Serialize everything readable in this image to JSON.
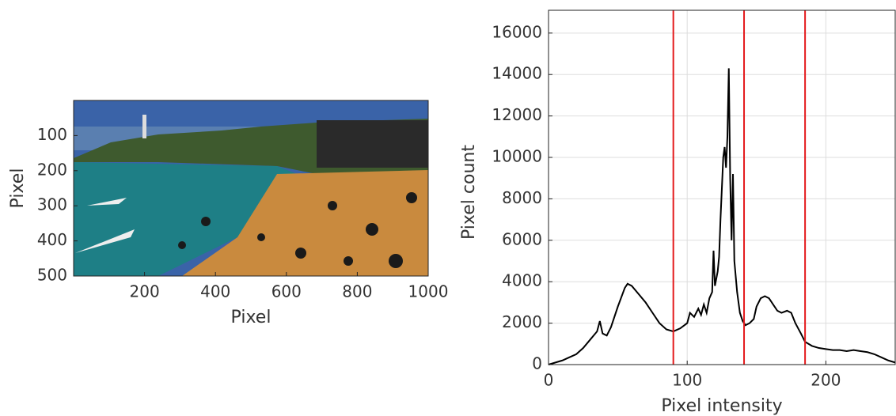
{
  "chart_data": [
    {
      "type": "image",
      "xlabel": "Pixel",
      "ylabel": "Pixel",
      "xlim": [
        0,
        1000
      ],
      "ylim": [
        0,
        500
      ],
      "y_inverted": true,
      "xticks": [
        200,
        400,
        600,
        800,
        1000
      ],
      "yticks": [
        100,
        200,
        300,
        400,
        500
      ]
    },
    {
      "type": "line",
      "xlabel": "Pixel intensity",
      "ylabel": "Pixel count",
      "xlim": [
        0,
        250
      ],
      "ylim": [
        0,
        17100
      ],
      "xticks": [
        0,
        100,
        200
      ],
      "yticks": [
        0,
        2000,
        4000,
        6000,
        8000,
        10000,
        12000,
        14000,
        16000
      ],
      "grid": true,
      "color": "#000000",
      "x": [
        0,
        5,
        10,
        15,
        20,
        25,
        30,
        35,
        37,
        39,
        42,
        45,
        50,
        55,
        57,
        60,
        65,
        70,
        75,
        80,
        85,
        90,
        95,
        100,
        102,
        105,
        108,
        110,
        112,
        114,
        116,
        118,
        119,
        120,
        122,
        123,
        124,
        126,
        127,
        128,
        129,
        130,
        131,
        132,
        133,
        134,
        136,
        138,
        140,
        142,
        145,
        148,
        150,
        153,
        156,
        159,
        162,
        165,
        168,
        172,
        175,
        178,
        182,
        185,
        190,
        195,
        200,
        205,
        210,
        215,
        220,
        225,
        230,
        235,
        240,
        245,
        250
      ],
      "values": [
        0,
        100,
        200,
        350,
        500,
        800,
        1200,
        1600,
        2100,
        1500,
        1400,
        1800,
        2800,
        3700,
        3900,
        3800,
        3400,
        3000,
        2500,
        2000,
        1700,
        1600,
        1750,
        2000,
        2500,
        2300,
        2700,
        2400,
        2900,
        2500,
        3200,
        3500,
        5500,
        3800,
        4500,
        5200,
        7000,
        10000,
        10500,
        9500,
        11000,
        14300,
        9000,
        6000,
        9200,
        5000,
        3500,
        2500,
        2100,
        1900,
        2000,
        2200,
        2800,
        3200,
        3300,
        3200,
        2900,
        2600,
        2500,
        2600,
        2500,
        2000,
        1500,
        1100,
        900,
        800,
        750,
        700,
        700,
        650,
        700,
        650,
        600,
        500,
        350,
        200,
        100
      ],
      "vlines": [
        90,
        141,
        185
      ],
      "vline_color": "#e41a1c"
    }
  ]
}
